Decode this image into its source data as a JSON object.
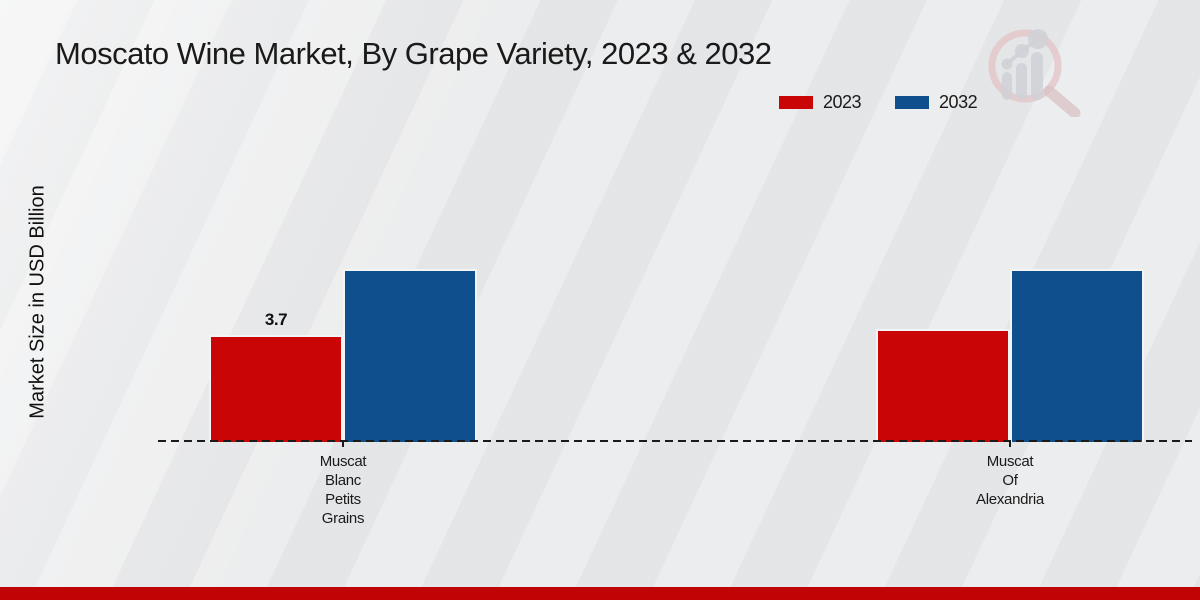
{
  "title": "Moscato Wine Market, By Grape Variety, 2023 & 2032",
  "ylabel": "Market Size in USD Billion",
  "footer": {
    "bar_color": "#c00404"
  },
  "watermark_icon": "magnifier-bar-chart-logo",
  "chart_data": {
    "type": "bar",
    "title": "Moscato Wine Market, By Grape Variety, 2023 & 2032",
    "xlabel": "",
    "ylabel": "Market Size in USD Billion",
    "categories": [
      "Muscat Blanc Petits Grains",
      "Muscat Of Alexandria"
    ],
    "category_lines": [
      [
        "Muscat",
        "Blanc",
        "Petits",
        "Grains"
      ],
      [
        "Muscat",
        "Of",
        "Alexandria"
      ]
    ],
    "series": [
      {
        "name": "2023",
        "color": "#c90505",
        "values": [
          3.7,
          3.9
        ],
        "value_labels": [
          "3.7",
          ""
        ]
      },
      {
        "name": "2032",
        "color": "#0f4f8e",
        "values": [
          6.0,
          6.0
        ],
        "value_labels": [
          "",
          ""
        ]
      }
    ],
    "ylim": [
      0,
      7
    ],
    "grid": false,
    "baseline_style": "dashed",
    "legend_position": "top-right"
  }
}
